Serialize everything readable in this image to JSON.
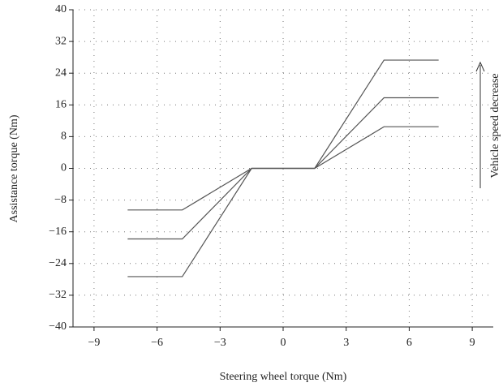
{
  "chart_data": {
    "type": "line",
    "xlabel": "Steering wheel torque (Nm)",
    "ylabel": "Assistance torque (Nm)",
    "annotation": "Vehicle speed decrease",
    "xlim": [
      -10,
      10
    ],
    "ylim": [
      -40,
      40
    ],
    "xticks": [
      {
        "value": -9,
        "label": "−9"
      },
      {
        "value": -6,
        "label": "−6"
      },
      {
        "value": -3,
        "label": "−3"
      },
      0,
      3,
      6,
      9
    ],
    "yticks": [
      {
        "value": -40,
        "label": "−40"
      },
      {
        "value": -32,
        "label": "−32"
      },
      {
        "value": -24,
        "label": "−24"
      },
      {
        "value": -16,
        "label": "−16"
      },
      {
        "value": -8,
        "label": "−8"
      },
      0,
      8,
      16,
      24,
      32,
      40
    ],
    "grid": true,
    "series": [
      {
        "color": "#555555",
        "x": [
          -7.4,
          -4.8,
          -1.5,
          1.5,
          4.8,
          7.4
        ],
        "values": [
          -10.5,
          -10.5,
          0,
          0,
          10.5,
          10.5
        ]
      },
      {
        "color": "#555555",
        "x": [
          -7.4,
          -4.8,
          -1.5,
          1.5,
          4.8,
          7.4
        ],
        "values": [
          -17.8,
          -17.8,
          0,
          0,
          17.8,
          17.8
        ]
      },
      {
        "color": "#555555",
        "x": [
          -7.4,
          -4.8,
          -1.5,
          1.5,
          4.8,
          7.4
        ],
        "values": [
          -27.3,
          -27.3,
          0,
          0,
          27.3,
          27.3
        ]
      }
    ]
  }
}
